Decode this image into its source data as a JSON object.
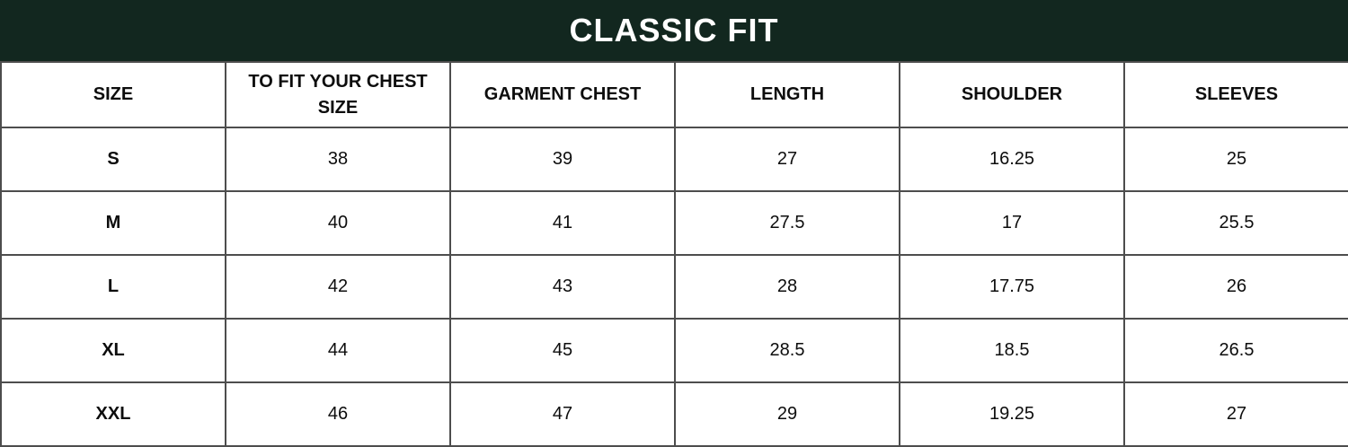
{
  "banner": {
    "bg_color": "#12271f",
    "text_color": "#ffffff"
  },
  "colors": {
    "table_border": "#4d4d4d",
    "table_text": "#0d0d0d",
    "background": "#ffffff"
  },
  "chart_data": {
    "type": "table",
    "title": "CLASSIC FIT",
    "columns": [
      "SIZE",
      "TO FIT YOUR CHEST SIZE",
      "GARMENT CHEST",
      "LENGTH",
      "SHOULDER",
      "SLEEVES"
    ],
    "rows": [
      [
        "S",
        "38",
        "39",
        "27",
        "16.25",
        "25"
      ],
      [
        "M",
        "40",
        "41",
        "27.5",
        "17",
        "25.5"
      ],
      [
        "L",
        "42",
        "43",
        "28",
        "17.75",
        "26"
      ],
      [
        "XL",
        "44",
        "45",
        "28.5",
        "18.5",
        "26.5"
      ],
      [
        "XXL",
        "46",
        "47",
        "29",
        "19.25",
        "27"
      ]
    ]
  }
}
